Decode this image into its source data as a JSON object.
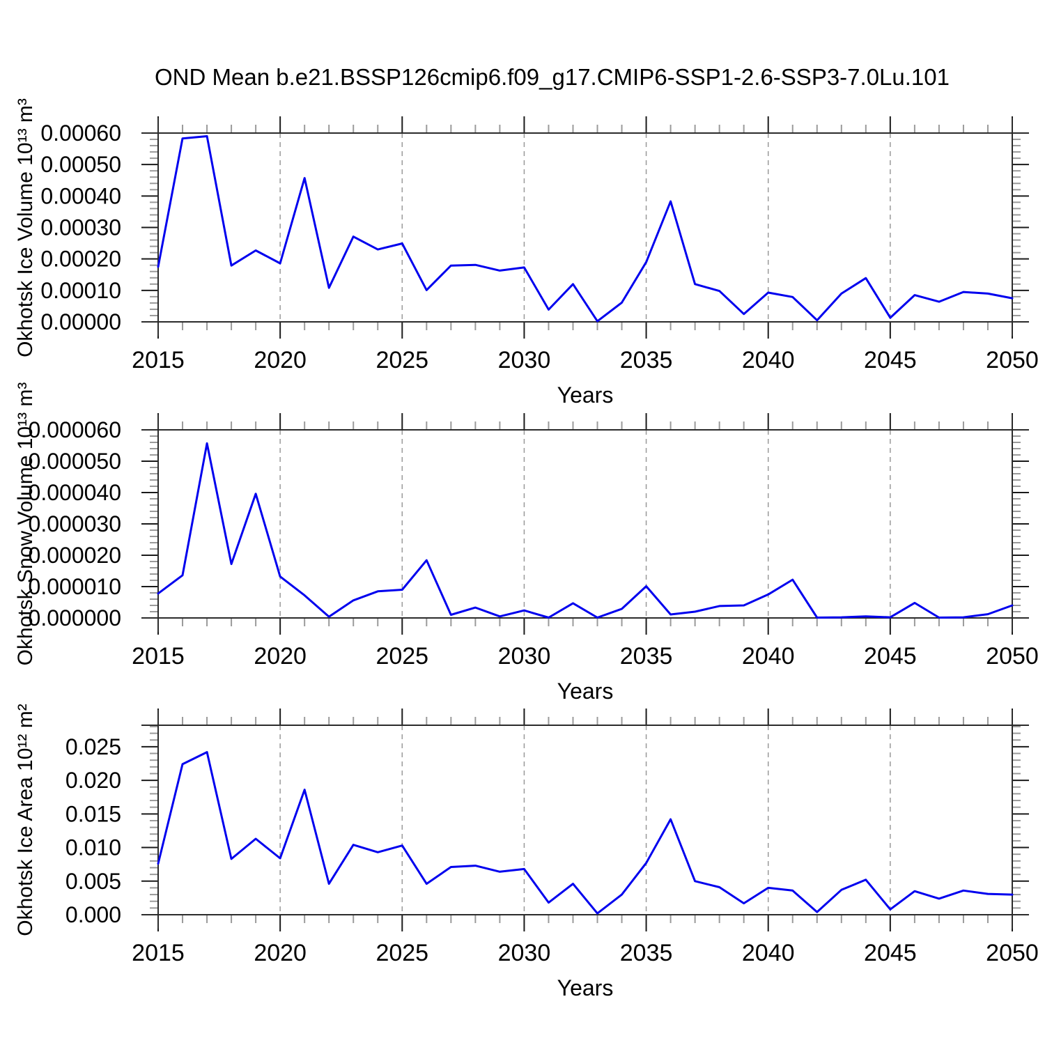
{
  "title": "OND Mean b.e21.BSSP126cmip6.f09_g17.CMIP6-SSP1-2.6-SSP3-7.0Lu.101",
  "colors": {
    "line": "#0000EE",
    "grid": "#999999",
    "axis": "#2b2b2b",
    "major_tick": "#1a1a1a",
    "minor_tick": "#9a9a9a",
    "text": "#000000"
  },
  "years": [
    2015,
    2016,
    2017,
    2018,
    2019,
    2020,
    2021,
    2022,
    2023,
    2024,
    2025,
    2026,
    2027,
    2028,
    2029,
    2030,
    2031,
    2032,
    2033,
    2034,
    2035,
    2036,
    2037,
    2038,
    2039,
    2040,
    2041,
    2042,
    2043,
    2044,
    2045,
    2046,
    2047,
    2048,
    2049,
    2050
  ],
  "chart_data": [
    {
      "type": "line",
      "id": "okhotsk-ice-volume",
      "ylabel": "Okhotsk Ice Volume 10¹³ m³",
      "xlabel": "Years",
      "x_start": 2015,
      "x_end": 2050,
      "xtick_labels": [
        "2015",
        "2020",
        "2025",
        "2030",
        "2035",
        "2040",
        "2045",
        "2050"
      ],
      "grid_years": [
        2020,
        2025,
        2030,
        2035,
        2040,
        2045
      ],
      "ylim": [
        0,
        0.0006
      ],
      "ytick_step": 0.0001,
      "yminor_step": 2e-05,
      "ytick_labels": [
        "0.00000",
        "0.00010",
        "0.00020",
        "0.00030",
        "0.00040",
        "0.00050",
        "0.00060"
      ],
      "values": [
        0.000175,
        0.000583,
        0.00059,
        0.000179,
        0.000227,
        0.000186,
        0.000457,
        0.000108,
        0.000271,
        0.00023,
        0.000249,
        0.000101,
        0.000179,
        0.000181,
        0.000163,
        0.000173,
        3.9e-05,
        0.00012,
        2e-06,
        6.1e-05,
        0.00019,
        0.000383,
        0.00012,
        9.8e-05,
        2.5e-05,
        9.3e-05,
        7.9e-05,
        5e-06,
        9e-05,
        0.000139,
        1.3e-05,
        8.5e-05,
        6.4e-05,
        9.5e-05,
        9e-05,
        7.5e-05
      ]
    },
    {
      "type": "line",
      "id": "okhotsk-snow-volume",
      "ylabel": "Okhotsk Snow Volume 10¹³ m³",
      "xlabel": "Years",
      "x_start": 2015,
      "x_end": 2050,
      "xtick_labels": [
        "2015",
        "2020",
        "2025",
        "2030",
        "2035",
        "2040",
        "2045",
        "2050"
      ],
      "grid_years": [
        2020,
        2025,
        2030,
        2035,
        2040,
        2045
      ],
      "ylim": [
        0,
        6e-05
      ],
      "ytick_step": 1e-05,
      "yminor_step": 2e-06,
      "ytick_labels": [
        "0.000000",
        "0.000010",
        "0.000020",
        "0.000030",
        "0.000040",
        "0.000050",
        "0.000060"
      ],
      "values": [
        7.8e-06,
        1.36e-05,
        5.57e-05,
        1.72e-05,
        3.96e-05,
        1.32e-05,
        7.2e-06,
        4e-07,
        5.6e-06,
        8.5e-06,
        9e-06,
        1.84e-05,
        1e-06,
        3.3e-06,
        5e-07,
        2.4e-06,
        1e-07,
        4.7e-06,
        1e-07,
        2.9e-06,
        1.01e-05,
        1.1e-06,
        2e-06,
        3.8e-06,
        4e-06,
        7.5e-06,
        1.22e-05,
        1e-07,
        2e-07,
        5e-07,
        2e-07,
        4.8e-06,
        1e-07,
        2e-07,
        1.2e-06,
        4e-06
      ]
    },
    {
      "type": "line",
      "id": "okhotsk-ice-area",
      "ylabel": "Okhotsk Ice Area 10¹² m²",
      "xlabel": "Years",
      "x_start": 2015,
      "x_end": 2050,
      "xtick_labels": [
        "2015",
        "2020",
        "2025",
        "2030",
        "2035",
        "2040",
        "2045",
        "2050"
      ],
      "grid_years": [
        2020,
        2025,
        2030,
        2035,
        2040,
        2045
      ],
      "ylim": [
        0,
        0.0282
      ],
      "ytick_step": 0.005,
      "yminor_step": 0.001,
      "ytick_labels": [
        "0.000",
        "0.005",
        "0.010",
        "0.015",
        "0.020",
        "0.025"
      ],
      "values": [
        0.0076,
        0.0224,
        0.0242,
        0.0083,
        0.0113,
        0.0084,
        0.0186,
        0.0046,
        0.0104,
        0.0093,
        0.0103,
        0.0046,
        0.0071,
        0.0073,
        0.0064,
        0.0068,
        0.0018,
        0.0046,
        0.0002,
        0.003,
        0.0077,
        0.0142,
        0.005,
        0.0041,
        0.0017,
        0.004,
        0.0036,
        0.0004,
        0.0037,
        0.0052,
        0.0008,
        0.0035,
        0.0024,
        0.0036,
        0.0031,
        0.003
      ]
    }
  ]
}
